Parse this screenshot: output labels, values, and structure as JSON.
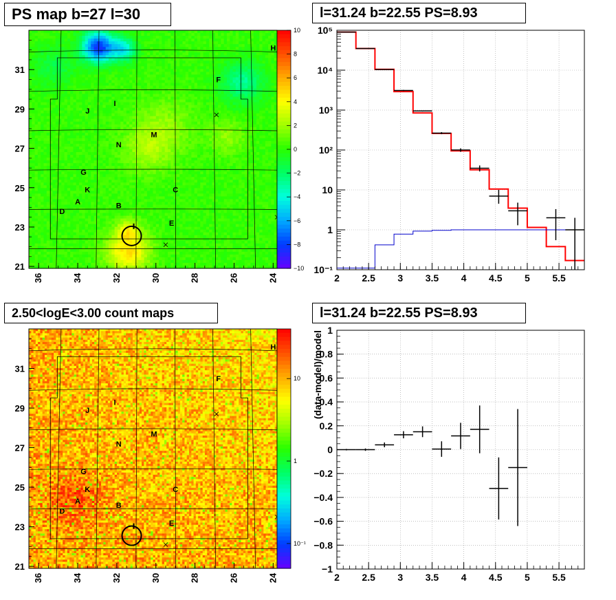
{
  "panels": {
    "top_left_title": "PS map b=27 l=30",
    "top_right_title": "l=31.24 b=22.55 PS=8.93",
    "bottom_left_title": "2.50<logE<3.00 count maps",
    "bottom_right_title": "l=31.24 b=22.55 PS=8.93"
  },
  "chart_data": [
    {
      "type": "heatmap",
      "title": "PS map b=27 l=30",
      "x_ticks": [
        "36",
        "34",
        "32",
        "30",
        "28",
        "26",
        "24"
      ],
      "y_ticks": [
        "21",
        "23",
        "25",
        "27",
        "29",
        "31"
      ],
      "xlim": [
        36.5,
        23.8
      ],
      "ylim": [
        20.9,
        33.0
      ],
      "colorbar": {
        "ticks": [
          "10",
          "8",
          "6",
          "4",
          "2",
          "0",
          "−2",
          "−4",
          "−6",
          "−8",
          "−10"
        ],
        "range": [
          -10,
          10
        ],
        "scale": "linear"
      },
      "labels": [
        {
          "text": "H",
          "l": 24.0,
          "b": 32.1
        },
        {
          "text": "F",
          "l": 26.8,
          "b": 30.5
        },
        {
          "text": "I",
          "l": 32.1,
          "b": 29.3
        },
        {
          "text": "J",
          "l": 33.5,
          "b": 28.9
        },
        {
          "text": "M",
          "l": 30.1,
          "b": 27.7
        },
        {
          "text": "N",
          "l": 31.9,
          "b": 27.2
        },
        {
          "text": "G",
          "l": 33.7,
          "b": 25.8
        },
        {
          "text": "K",
          "l": 33.5,
          "b": 24.9
        },
        {
          "text": "C",
          "l": 29.0,
          "b": 24.9
        },
        {
          "text": "A",
          "l": 34.0,
          "b": 24.3
        },
        {
          "text": "B",
          "l": 31.9,
          "b": 24.1
        },
        {
          "text": "D",
          "l": 34.8,
          "b": 23.8
        },
        {
          "text": "E",
          "l": 29.2,
          "b": 23.2
        }
      ],
      "crosses": [
        {
          "l": 26.9,
          "b": 28.7
        },
        {
          "l": 29.5,
          "b": 22.1
        },
        {
          "l": 23.8,
          "b": 23.5
        }
      ],
      "circle": {
        "l": 31.24,
        "b": 22.55
      }
    },
    {
      "type": "line",
      "title": "l=31.24 b=22.55 PS=8.93",
      "xlabel": "",
      "ylabel": "",
      "xlim": [
        2.0,
        5.9
      ],
      "ylim": [
        0.1,
        100000
      ],
      "yscale": "log",
      "x_ticks": [
        "2",
        "2.5",
        "3",
        "3.5",
        "4",
        "4.5",
        "5",
        "5.5"
      ],
      "y_ticks": [
        "10⁻¹",
        "1",
        "10",
        "10²",
        "10³",
        "10⁴",
        "10⁵"
      ],
      "bin_edges": [
        2.0,
        2.3,
        2.6,
        2.9,
        3.2,
        3.5,
        3.8,
        4.1,
        4.4,
        4.7,
        5.0,
        5.3,
        5.6,
        5.9
      ],
      "series": [
        {
          "name": "",
          "color": "#ff0000",
          "style": "step",
          "values": [
            90000,
            35000,
            10500,
            2900,
            850,
            260,
            95,
            32,
            10.5,
            3.5,
            1.15,
            0.38,
            0.17
          ]
        },
        {
          "name": "",
          "color": "#0000cc",
          "style": "step",
          "values": [
            0.11,
            0.11,
            0.42,
            0.78,
            0.93,
            0.97,
            1.0,
            1.0,
            1.0,
            1.0,
            1.0,
            1.0,
            1.0
          ]
        },
        {
          "name": "",
          "color": "#000000",
          "style": "errorbars",
          "points": [
            {
              "x": 2.15,
              "y": 90000,
              "lo": 89400,
              "hi": 90600
            },
            {
              "x": 2.45,
              "y": 35000,
              "lo": 34600,
              "hi": 35400
            },
            {
              "x": 2.75,
              "y": 10400,
              "lo": 10200,
              "hi": 10600
            },
            {
              "x": 3.05,
              "y": 3100,
              "lo": 3000,
              "hi": 3200
            },
            {
              "x": 3.35,
              "y": 950,
              "lo": 920,
              "hi": 980
            },
            {
              "x": 3.65,
              "y": 265,
              "lo": 250,
              "hi": 280
            },
            {
              "x": 3.95,
              "y": 100,
              "lo": 90,
              "hi": 110
            },
            {
              "x": 4.25,
              "y": 35,
              "lo": 29,
              "hi": 41
            },
            {
              "x": 4.55,
              "y": 7,
              "lo": 4.5,
              "hi": 10
            },
            {
              "x": 4.85,
              "y": 3,
              "lo": 1.3,
              "hi": 4.8
            },
            {
              "x": 5.45,
              "y": 2,
              "lo": 0.55,
              "hi": 3.3
            },
            {
              "x": 5.75,
              "y": 1.0,
              "lo": 0.1,
              "hi": 2.0
            }
          ]
        }
      ]
    },
    {
      "type": "heatmap",
      "title": "2.50<logE<3.00 count maps",
      "x_ticks": [
        "36",
        "34",
        "32",
        "30",
        "28",
        "26",
        "24"
      ],
      "y_ticks": [
        "21",
        "23",
        "25",
        "27",
        "29",
        "31"
      ],
      "xlim": [
        36.5,
        23.8
      ],
      "ylim": [
        20.9,
        33.0
      ],
      "colorbar": {
        "ticks": [
          "10",
          "1",
          "10⁻¹"
        ],
        "range": [
          0.05,
          40
        ],
        "scale": "log"
      },
      "labels": [
        {
          "text": "H",
          "l": 24.0,
          "b": 32.1
        },
        {
          "text": "F",
          "l": 26.8,
          "b": 30.5
        },
        {
          "text": "I",
          "l": 32.1,
          "b": 29.3
        },
        {
          "text": "J",
          "l": 33.5,
          "b": 28.9
        },
        {
          "text": "M",
          "l": 30.1,
          "b": 27.7
        },
        {
          "text": "N",
          "l": 31.9,
          "b": 27.2
        },
        {
          "text": "G",
          "l": 33.7,
          "b": 25.8
        },
        {
          "text": "K",
          "l": 33.5,
          "b": 24.9
        },
        {
          "text": "C",
          "l": 29.0,
          "b": 24.9
        },
        {
          "text": "A",
          "l": 34.0,
          "b": 24.3
        },
        {
          "text": "B",
          "l": 31.9,
          "b": 24.1
        },
        {
          "text": "D",
          "l": 34.8,
          "b": 23.8
        },
        {
          "text": "E",
          "l": 29.2,
          "b": 23.2
        }
      ],
      "crosses": [
        {
          "l": 26.9,
          "b": 28.7
        },
        {
          "l": 29.5,
          "b": 22.1
        },
        {
          "l": 23.8,
          "b": 23.5
        }
      ],
      "circle": {
        "l": 31.24,
        "b": 22.55
      }
    },
    {
      "type": "scatter",
      "title": "l=31.24 b=22.55 PS=8.93",
      "xlabel": "",
      "ylabel": "(data-model)/model",
      "xlim": [
        2.0,
        5.9
      ],
      "ylim": [
        -1,
        1
      ],
      "x_ticks": [
        "2",
        "2.5",
        "3",
        "3.5",
        "4",
        "4.5",
        "5",
        "5.5"
      ],
      "y_ticks": [
        "−1",
        "−0.8",
        "−0.6",
        "−0.4",
        "−0.2",
        "0",
        "0.2",
        "0.4",
        "0.6",
        "0.8",
        "1"
      ],
      "points": [
        {
          "x": 2.15,
          "y": 0.0,
          "err": 0.006
        },
        {
          "x": 2.45,
          "y": 0.0,
          "err": 0.01
        },
        {
          "x": 2.75,
          "y": 0.04,
          "err": 0.02
        },
        {
          "x": 3.05,
          "y": 0.125,
          "err": 0.03
        },
        {
          "x": 3.35,
          "y": 0.15,
          "err": 0.045
        },
        {
          "x": 3.65,
          "y": 0.005,
          "err": 0.065
        },
        {
          "x": 3.95,
          "y": 0.115,
          "err": 0.11
        },
        {
          "x": 4.25,
          "y": 0.17,
          "err": 0.2
        },
        {
          "x": 4.55,
          "y": -0.325,
          "err": 0.26
        },
        {
          "x": 4.85,
          "y": -0.15,
          "err": 0.49
        }
      ]
    }
  ]
}
